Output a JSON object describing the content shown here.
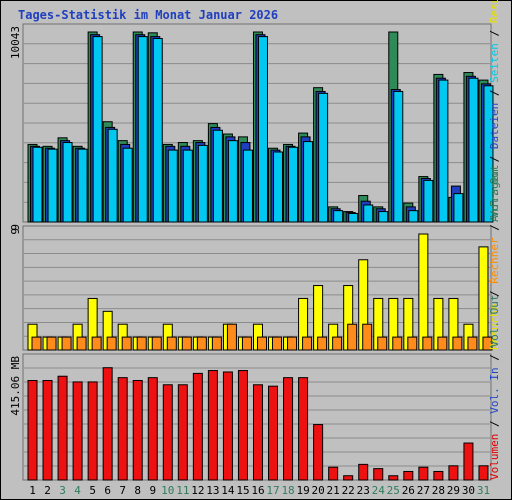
{
  "chart_data": {
    "type": "bar",
    "title": "Tages-Statistik im Monat Januar 2026",
    "categories": [
      "1",
      "2",
      "3",
      "4",
      "5",
      "6",
      "7",
      "8",
      "9",
      "10",
      "11",
      "12",
      "13",
      "14",
      "15",
      "16",
      "17",
      "18",
      "19",
      "20",
      "21",
      "22",
      "23",
      "24",
      "25",
      "26",
      "27",
      "28",
      "29",
      "30",
      "31"
    ],
    "weekend_days": [
      3,
      4,
      10,
      11,
      17,
      18,
      24,
      25,
      31
    ],
    "panels": [
      {
        "id": "requests",
        "ymax_label": "10043",
        "ymax": 10043,
        "ymin_label": "9",
        "right_label": [
          {
            "text": "Anfragen",
            "color": "#2e7d5b"
          },
          {
            "text": " / ",
            "color": "#000000"
          },
          {
            "text": "Dateien",
            "color": "#1f48c8"
          },
          {
            "text": " / ",
            "color": "#000000"
          },
          {
            "text": "Seiten",
            "color": "#00c8e8"
          },
          {
            "text": " / ",
            "color": "#000000"
          },
          {
            "text": "Besuche",
            "color": "#e8e000"
          }
        ],
        "series": [
          {
            "name": "Anfragen",
            "color": "#2e8b57",
            "values": [
              4100,
              4000,
              4450,
              4000,
              10043,
              5300,
              4300,
              10043,
              10000,
              4100,
              4200,
              4300,
              5200,
              4650,
              4500,
              10043,
              3900,
              4100,
              4700,
              7100,
              800,
              550,
              1400,
              800,
              10043,
              1000,
              2400,
              7800,
              1300,
              7900,
              7500
            ]
          },
          {
            "name": "Dateien",
            "color": "#1f3fbf",
            "values": [
              4000,
              3900,
              4300,
              3900,
              9900,
              5000,
              4100,
              9900,
              9800,
              4000,
              4000,
              4200,
              5000,
              4500,
              4200,
              9900,
              3800,
              4000,
              4500,
              6900,
              700,
              500,
              1100,
              700,
              7000,
              800,
              2300,
              7600,
              1900,
              7700,
              7300
            ]
          },
          {
            "name": "Seiten",
            "color": "#00c8f0",
            "values": [
              3950,
              3850,
              4200,
              3850,
              9800,
              4900,
              3900,
              9800,
              9700,
              3800,
              3800,
              4050,
              4850,
              4300,
              3800,
              9800,
              3700,
              3950,
              4250,
              6800,
              600,
              450,
              900,
              550,
              6900,
              600,
              2200,
              7500,
              1500,
              7600,
              7200
            ]
          }
        ]
      },
      {
        "id": "visits",
        "ymax_label": "9",
        "ymax": 9,
        "right_label": [
          {
            "text": "Besuche",
            "color": "#e8e000"
          },
          {
            "text": " / ",
            "color": "#000000"
          },
          {
            "text": "Rechner",
            "color": "#ff8c00"
          },
          {
            "text": " / ",
            "color": "#000000"
          },
          {
            "text": "Vol. Out",
            "color": "#2e7d5b"
          }
        ],
        "series": [
          {
            "name": "Besuche",
            "color": "#ffff00",
            "values": [
              2,
              1,
              1,
              2,
              4,
              3,
              2,
              1,
              1,
              2,
              1,
              1,
              1,
              2,
              1,
              2,
              1,
              1,
              4,
              5,
              2,
              5,
              7,
              4,
              4,
              4,
              9,
              4,
              4,
              2,
              8
            ]
          },
          {
            "name": "Rechner",
            "color": "#ff8c1a",
            "values": [
              1,
              1,
              1,
              1,
              1,
              1,
              1,
              1,
              1,
              1,
              1,
              1,
              1,
              2,
              1,
              1,
              1,
              1,
              1,
              1,
              1,
              2,
              2,
              1,
              1,
              1,
              1,
              1,
              1,
              1,
              1
            ]
          }
        ]
      },
      {
        "id": "volume",
        "ymax_label": "415.06 MB",
        "ymax": 415.06,
        "right_label": [
          {
            "text": "Volumen",
            "color": "#e00000"
          },
          {
            "text": " / ",
            "color": "#000000"
          },
          {
            "text": "Vol. In",
            "color": "#1f48c8"
          },
          {
            "text": " / ",
            "color": "#000000"
          },
          {
            "text": "Vol. Out",
            "color": "#2e7d5b"
          }
        ],
        "series": [
          {
            "name": "Volumen",
            "color": "#ee1111",
            "values": [
              350,
              350,
              365,
              345,
              345,
              395,
              360,
              350,
              360,
              335,
              335,
              375,
              385,
              380,
              385,
              335,
              330,
              360,
              360,
              195,
              45,
              15,
              55,
              40,
              15,
              30,
              45,
              30,
              50,
              130,
              50
            ]
          }
        ]
      }
    ]
  }
}
